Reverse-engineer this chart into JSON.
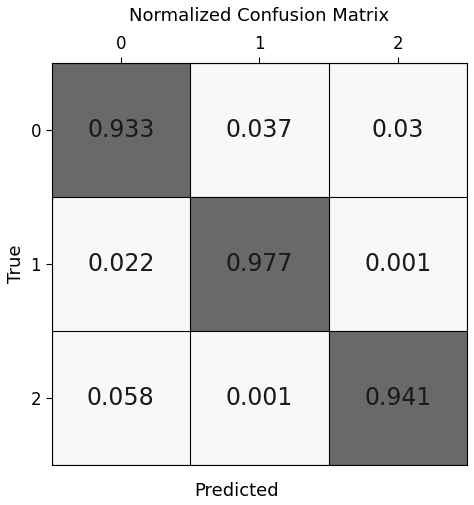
{
  "title": "Normalized Confusion Matrix",
  "xlabel": "Predicted",
  "ylabel": "True",
  "matrix": [
    [
      0.933,
      0.037,
      0.03
    ],
    [
      0.022,
      0.977,
      0.001
    ],
    [
      0.058,
      0.001,
      0.941
    ]
  ],
  "cell_texts": [
    [
      "0.933",
      "0.037",
      "0.03"
    ],
    [
      "0.022",
      "0.977",
      "0.001"
    ],
    [
      "0.058",
      "0.001",
      "0.941"
    ]
  ],
  "classes": [
    "0",
    "1",
    "2"
  ],
  "diagonal_color": "#696969",
  "off_diagonal_color": "#f8f8f8",
  "text_color": "#1a1a1a",
  "title_fontsize": 13,
  "label_fontsize": 13,
  "tick_fontsize": 12,
  "value_fontsize": 17,
  "figsize": [
    4.74,
    5.05
  ],
  "dpi": 100
}
